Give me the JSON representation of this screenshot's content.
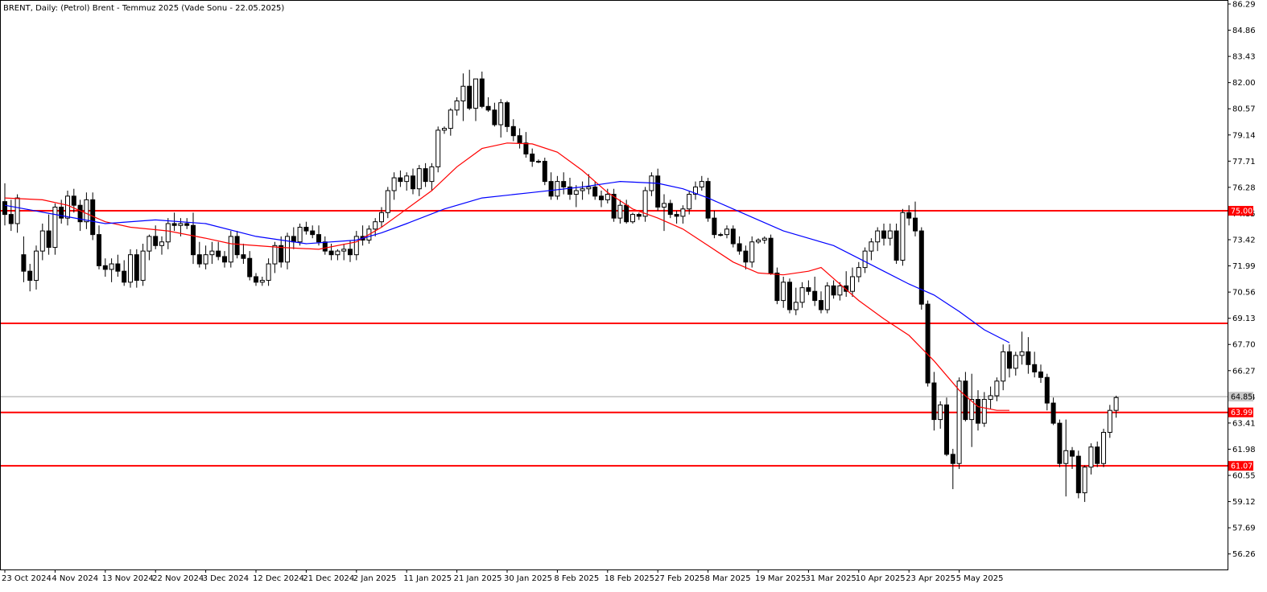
{
  "chart_data": {
    "type": "candlestick",
    "title": "BRENT, Daily:  (Petrol) Brent - Temmuz 2025 (Vade Sonu - 22.05.2025)",
    "ylim": [
      55.5,
      86.29
    ],
    "y_ticks": [
      "86.29",
      "84.86",
      "83.43",
      "82.00",
      "80.57",
      "79.14",
      "77.71",
      "76.28",
      "74.85",
      "73.42",
      "71.99",
      "70.56",
      "69.13",
      "67.70",
      "66.27",
      "64.84",
      "63.41",
      "61.98",
      "60.55",
      "59.12",
      "57.69",
      "56.26"
    ],
    "x_labels": [
      "23 Oct 2024",
      "4 Nov 2024",
      "13 Nov 2024",
      "22 Nov 2024",
      "3 Dec 2024",
      "12 Dec 2024",
      "21 Dec 2024",
      "2 Jan 2025",
      "11 Jan 2025",
      "21 Jan 2025",
      "30 Jan 2025",
      "8 Feb 2025",
      "18 Feb 2025",
      "27 Feb 2025",
      "8 Mar 2025",
      "19 Mar 2025",
      "31 Mar 2025",
      "10 Apr 2025",
      "23 Apr 2025",
      "5 May 2025"
    ],
    "x_label_index": [
      0,
      8,
      16,
      24,
      32,
      40,
      48,
      56,
      64,
      72,
      80,
      88,
      96,
      104,
      112,
      120,
      128,
      136,
      144,
      152
    ],
    "horizontal_levels": [
      {
        "value": 75.0,
        "label": "75.00",
        "color": "#ff0000"
      },
      {
        "value": 68.85,
        "label": "",
        "color": "#ff0000"
      },
      {
        "value": 63.99,
        "label": "63.99",
        "color": "#ff0000"
      },
      {
        "value": 61.07,
        "label": "61.07",
        "color": "#ff0000"
      }
    ],
    "current_price": {
      "value": 64.85,
      "label": "64.85",
      "color": "#a0a0a0"
    },
    "candles": [
      [
        75.5,
        76.5,
        74.2,
        74.8
      ],
      [
        74.8,
        75.6,
        73.9,
        74.3
      ],
      [
        74.3,
        75.9,
        73.8,
        75.7
      ],
      [
        72.6,
        73.6,
        71.1,
        71.7
      ],
      [
        71.7,
        72.1,
        70.6,
        71.2
      ],
      [
        71.2,
        73.1,
        70.7,
        72.8
      ],
      [
        72.8,
        74.3,
        72.3,
        73.9
      ],
      [
        73.9,
        74.8,
        72.6,
        73.0
      ],
      [
        73.0,
        75.4,
        72.6,
        75.2
      ],
      [
        75.2,
        75.6,
        74.3,
        74.6
      ],
      [
        74.6,
        76.1,
        74.2,
        75.8
      ],
      [
        75.8,
        76.2,
        74.9,
        75.3
      ],
      [
        75.3,
        75.6,
        73.9,
        74.4
      ],
      [
        74.4,
        76.0,
        74.0,
        75.6
      ],
      [
        75.6,
        76.0,
        73.4,
        73.7
      ],
      [
        73.7,
        74.2,
        71.8,
        72.0
      ],
      [
        72.0,
        72.4,
        71.4,
        71.8
      ],
      [
        71.8,
        72.4,
        71.1,
        72.1
      ],
      [
        72.1,
        72.6,
        71.4,
        71.7
      ],
      [
        71.7,
        72.3,
        70.9,
        71.1
      ],
      [
        71.1,
        72.9,
        70.8,
        72.6
      ],
      [
        72.6,
        72.9,
        70.8,
        71.2
      ],
      [
        71.2,
        73.2,
        70.9,
        72.8
      ],
      [
        72.8,
        73.7,
        72.3,
        73.6
      ],
      [
        73.6,
        74.2,
        72.9,
        73.1
      ],
      [
        73.1,
        73.6,
        72.6,
        73.3
      ],
      [
        73.3,
        74.6,
        72.9,
        74.3
      ],
      [
        74.3,
        74.9,
        73.9,
        74.2
      ],
      [
        74.2,
        74.6,
        73.6,
        74.3
      ],
      [
        74.3,
        74.6,
        74.0,
        74.2
      ],
      [
        74.2,
        74.9,
        72.1,
        72.6
      ],
      [
        72.6,
        73.3,
        71.9,
        72.1
      ],
      [
        72.1,
        73.1,
        71.8,
        72.6
      ],
      [
        72.6,
        73.3,
        72.1,
        72.8
      ],
      [
        72.8,
        73.3,
        72.3,
        72.5
      ],
      [
        72.5,
        72.8,
        71.9,
        72.2
      ],
      [
        72.2,
        73.9,
        71.9,
        73.6
      ],
      [
        73.6,
        73.9,
        72.4,
        72.6
      ],
      [
        72.6,
        73.2,
        72.1,
        72.4
      ],
      [
        72.4,
        72.8,
        71.2,
        71.4
      ],
      [
        71.4,
        71.6,
        70.9,
        71.1
      ],
      [
        71.1,
        71.4,
        70.9,
        71.2
      ],
      [
        71.2,
        72.4,
        70.9,
        72.1
      ],
      [
        72.1,
        73.3,
        71.6,
        73.1
      ],
      [
        73.1,
        73.6,
        71.9,
        72.2
      ],
      [
        72.2,
        73.8,
        71.8,
        73.6
      ],
      [
        73.6,
        74.1,
        72.9,
        73.3
      ],
      [
        73.3,
        74.3,
        73.1,
        74.1
      ],
      [
        74.1,
        74.4,
        73.7,
        73.9
      ],
      [
        73.9,
        74.2,
        73.5,
        73.7
      ],
      [
        73.7,
        74.2,
        73.1,
        73.3
      ],
      [
        73.3,
        73.6,
        72.6,
        72.8
      ],
      [
        72.8,
        73.2,
        72.3,
        72.6
      ],
      [
        72.6,
        72.9,
        72.3,
        72.8
      ],
      [
        72.8,
        73.2,
        72.3,
        72.9
      ],
      [
        72.9,
        73.4,
        72.2,
        72.6
      ],
      [
        72.6,
        73.9,
        72.3,
        73.6
      ],
      [
        73.6,
        74.2,
        73.1,
        73.4
      ],
      [
        73.4,
        74.2,
        73.2,
        74.0
      ],
      [
        74.0,
        74.6,
        73.6,
        74.4
      ],
      [
        74.4,
        75.2,
        74.1,
        74.9
      ],
      [
        74.9,
        76.3,
        74.6,
        76.1
      ],
      [
        76.1,
        77.1,
        75.6,
        76.8
      ],
      [
        76.8,
        77.2,
        76.3,
        76.6
      ],
      [
        76.6,
        77.1,
        76.1,
        76.9
      ],
      [
        76.9,
        77.3,
        75.9,
        76.2
      ],
      [
        76.2,
        77.5,
        75.8,
        77.3
      ],
      [
        77.3,
        77.6,
        76.3,
        76.6
      ],
      [
        76.6,
        77.6,
        76.1,
        77.4
      ],
      [
        77.4,
        79.6,
        77.1,
        79.4
      ],
      [
        79.4,
        79.6,
        79.2,
        79.5
      ],
      [
        79.5,
        80.6,
        79.1,
        80.5
      ],
      [
        80.5,
        81.2,
        80.2,
        81.0
      ],
      [
        81.0,
        82.5,
        79.9,
        81.8
      ],
      [
        81.8,
        82.7,
        80.5,
        80.6
      ],
      [
        80.6,
        82.2,
        79.9,
        82.2
      ],
      [
        82.2,
        82.6,
        80.6,
        80.7
      ],
      [
        80.7,
        81.2,
        80.4,
        80.5
      ],
      [
        80.5,
        80.9,
        79.6,
        79.7
      ],
      [
        79.7,
        81.1,
        79.0,
        80.9
      ],
      [
        80.9,
        81.0,
        79.3,
        79.6
      ],
      [
        79.6,
        80.0,
        78.8,
        79.1
      ],
      [
        79.1,
        79.5,
        78.4,
        78.7
      ],
      [
        78.7,
        79.3,
        77.9,
        78.1
      ],
      [
        78.1,
        78.4,
        77.4,
        77.7
      ],
      [
        77.7,
        77.8,
        77.6,
        77.7
      ],
      [
        77.7,
        77.9,
        76.4,
        76.6
      ],
      [
        76.6,
        77.1,
        75.6,
        75.8
      ],
      [
        75.8,
        76.9,
        75.6,
        76.6
      ],
      [
        76.6,
        77.1,
        75.9,
        76.3
      ],
      [
        76.3,
        76.8,
        75.6,
        75.9
      ],
      [
        75.9,
        76.4,
        75.2,
        76.1
      ],
      [
        76.1,
        76.6,
        75.6,
        76.2
      ],
      [
        76.2,
        77.0,
        75.9,
        76.3
      ],
      [
        76.3,
        76.6,
        75.6,
        75.8
      ],
      [
        75.8,
        76.1,
        75.2,
        75.6
      ],
      [
        75.6,
        76.2,
        75.4,
        75.9
      ],
      [
        75.9,
        76.2,
        74.4,
        74.6
      ],
      [
        74.6,
        75.6,
        74.3,
        75.3
      ],
      [
        75.3,
        75.6,
        74.3,
        74.4
      ],
      [
        74.4,
        74.9,
        74.3,
        74.8
      ],
      [
        74.8,
        74.9,
        74.5,
        74.7
      ],
      [
        74.7,
        76.3,
        74.4,
        76.1
      ],
      [
        76.1,
        77.1,
        75.8,
        76.9
      ],
      [
        76.9,
        77.3,
        75.0,
        75.2
      ],
      [
        75.2,
        75.9,
        73.9,
        75.4
      ],
      [
        75.4,
        75.6,
        74.6,
        74.8
      ],
      [
        74.8,
        75.0,
        74.3,
        74.7
      ],
      [
        74.7,
        75.3,
        74.3,
        75.1
      ],
      [
        75.1,
        76.1,
        74.8,
        75.9
      ],
      [
        75.9,
        76.6,
        75.6,
        76.3
      ],
      [
        76.3,
        76.9,
        76.1,
        76.6
      ],
      [
        76.6,
        76.8,
        74.4,
        74.6
      ],
      [
        74.6,
        75.0,
        73.5,
        73.7
      ],
      [
        73.7,
        73.8,
        73.6,
        73.7
      ],
      [
        73.7,
        74.2,
        73.5,
        74.0
      ],
      [
        74.0,
        74.2,
        73.0,
        73.2
      ],
      [
        73.2,
        73.6,
        72.6,
        72.8
      ],
      [
        72.8,
        73.1,
        71.8,
        72.2
      ],
      [
        72.2,
        73.6,
        71.9,
        73.3
      ],
      [
        73.3,
        73.5,
        73.2,
        73.4
      ],
      [
        73.4,
        73.6,
        73.2,
        73.5
      ],
      [
        73.5,
        73.7,
        71.5,
        71.6
      ],
      [
        71.6,
        71.9,
        69.9,
        70.1
      ],
      [
        70.1,
        71.4,
        69.7,
        71.1
      ],
      [
        71.1,
        71.3,
        69.4,
        69.6
      ],
      [
        69.6,
        70.8,
        69.3,
        70.0
      ],
      [
        70.0,
        71.1,
        69.7,
        70.8
      ],
      [
        70.8,
        71.2,
        70.4,
        70.6
      ],
      [
        70.6,
        71.4,
        69.8,
        70.1
      ],
      [
        70.1,
        70.6,
        69.4,
        69.6
      ],
      [
        69.6,
        71.1,
        69.4,
        70.9
      ],
      [
        70.9,
        71.2,
        70.2,
        70.4
      ],
      [
        70.4,
        71.1,
        70.1,
        70.9
      ],
      [
        70.9,
        71.7,
        70.3,
        70.6
      ],
      [
        70.6,
        71.9,
        70.3,
        71.4
      ],
      [
        71.4,
        72.2,
        71.1,
        71.9
      ],
      [
        71.9,
        73.0,
        71.6,
        72.8
      ],
      [
        72.8,
        73.5,
        72.3,
        73.3
      ],
      [
        73.3,
        74.1,
        72.8,
        73.9
      ],
      [
        73.9,
        74.3,
        73.1,
        73.5
      ],
      [
        73.5,
        74.3,
        73.1,
        73.9
      ],
      [
        73.9,
        74.3,
        72.1,
        72.3
      ],
      [
        72.3,
        75.1,
        72.0,
        74.9
      ],
      [
        74.9,
        75.3,
        74.2,
        74.6
      ],
      [
        74.6,
        75.5,
        73.6,
        73.9
      ],
      [
        73.9,
        74.1,
        69.6,
        69.9
      ],
      [
        69.9,
        70.1,
        65.4,
        65.6
      ],
      [
        65.6,
        66.2,
        63.0,
        63.6
      ],
      [
        63.6,
        64.6,
        63.1,
        64.4
      ],
      [
        64.4,
        64.8,
        61.6,
        61.7
      ],
      [
        61.7,
        62.0,
        59.8,
        61.2
      ],
      [
        61.2,
        65.9,
        60.9,
        65.7
      ],
      [
        65.7,
        66.2,
        63.5,
        63.6
      ],
      [
        63.6,
        66.1,
        62.1,
        64.7
      ],
      [
        64.7,
        65.2,
        63.0,
        63.4
      ],
      [
        63.4,
        65.1,
        63.2,
        64.7
      ],
      [
        64.7,
        65.4,
        64.2,
        64.9
      ],
      [
        64.9,
        65.9,
        64.6,
        65.7
      ],
      [
        65.7,
        67.7,
        65.2,
        67.3
      ],
      [
        67.3,
        67.7,
        65.9,
        66.4
      ],
      [
        66.4,
        67.3,
        66.0,
        67.1
      ],
      [
        67.1,
        68.4,
        66.6,
        67.3
      ],
      [
        67.3,
        68.1,
        66.1,
        66.6
      ],
      [
        66.6,
        67.3,
        65.9,
        66.2
      ],
      [
        66.2,
        66.6,
        65.6,
        65.9
      ],
      [
        65.9,
        66.1,
        64.1,
        64.5
      ],
      [
        64.5,
        64.8,
        63.3,
        63.4
      ],
      [
        63.4,
        63.6,
        61.0,
        61.2
      ],
      [
        61.2,
        63.6,
        59.4,
        61.9
      ],
      [
        61.9,
        62.1,
        60.9,
        61.6
      ],
      [
        61.6,
        61.9,
        59.3,
        59.6
      ],
      [
        59.6,
        61.1,
        59.1,
        61.0
      ],
      [
        61.0,
        62.3,
        60.6,
        62.1
      ],
      [
        62.1,
        62.4,
        61.0,
        61.2
      ],
      [
        61.2,
        63.1,
        61.0,
        62.9
      ],
      [
        62.9,
        64.4,
        62.6,
        64.1
      ],
      [
        64.1,
        64.9,
        63.7,
        64.8
      ]
    ],
    "series": [
      {
        "name": "",
        "color": "#ff0000",
        "points": [
          [
            0,
            75.7
          ],
          [
            6,
            75.6
          ],
          [
            10,
            75.3
          ],
          [
            16,
            74.4
          ],
          [
            20,
            74.1
          ],
          [
            26,
            73.9
          ],
          [
            32,
            73.5
          ],
          [
            36,
            73.2
          ],
          [
            44,
            73.0
          ],
          [
            50,
            72.9
          ],
          [
            56,
            73.3
          ],
          [
            60,
            74.1
          ],
          [
            64,
            75.1
          ],
          [
            68,
            76.1
          ],
          [
            72,
            77.4
          ],
          [
            76,
            78.4
          ],
          [
            80,
            78.7
          ],
          [
            84,
            78.65
          ],
          [
            88,
            78.2
          ],
          [
            92,
            77.2
          ],
          [
            96,
            76.0
          ],
          [
            100,
            75.1
          ],
          [
            104,
            74.6
          ],
          [
            108,
            74.0
          ],
          [
            112,
            73.1
          ],
          [
            116,
            72.2
          ],
          [
            120,
            71.6
          ],
          [
            124,
            71.5
          ],
          [
            128,
            71.7
          ],
          [
            130,
            71.9
          ],
          [
            132,
            71.3
          ],
          [
            136,
            70.1
          ],
          [
            140,
            69.1
          ],
          [
            144,
            68.2
          ],
          [
            148,
            66.8
          ],
          [
            152,
            65.2
          ],
          [
            155,
            64.3
          ],
          [
            158,
            64.1
          ],
          [
            160,
            64.1
          ]
        ]
      },
      {
        "name": "",
        "color": "#0000ff",
        "points": [
          [
            0,
            75.3
          ],
          [
            8,
            74.8
          ],
          [
            16,
            74.3
          ],
          [
            24,
            74.5
          ],
          [
            32,
            74.3
          ],
          [
            40,
            73.6
          ],
          [
            48,
            73.2
          ],
          [
            56,
            73.4
          ],
          [
            60,
            73.8
          ],
          [
            64,
            74.3
          ],
          [
            70,
            75.1
          ],
          [
            76,
            75.7
          ],
          [
            84,
            76.0
          ],
          [
            92,
            76.3
          ],
          [
            98,
            76.6
          ],
          [
            104,
            76.5
          ],
          [
            108,
            76.2
          ],
          [
            112,
            75.7
          ],
          [
            116,
            75.1
          ],
          [
            120,
            74.5
          ],
          [
            124,
            73.9
          ],
          [
            128,
            73.5
          ],
          [
            132,
            73.1
          ],
          [
            136,
            72.4
          ],
          [
            140,
            71.7
          ],
          [
            144,
            71.0
          ],
          [
            148,
            70.4
          ],
          [
            152,
            69.5
          ],
          [
            156,
            68.5
          ],
          [
            160,
            67.8
          ]
        ]
      }
    ]
  }
}
